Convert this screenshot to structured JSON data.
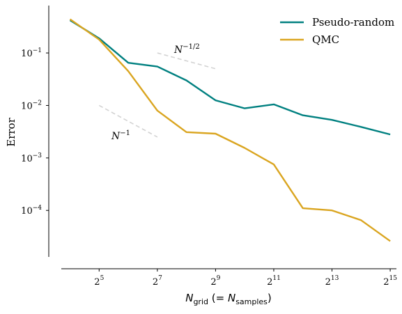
{
  "chart_data": {
    "type": "line",
    "x_scale": "log2",
    "y_scale": "log10",
    "xlabel": {
      "main": "N",
      "sub1": "grid",
      "mid": " (= ",
      "main2": "N",
      "sub2": "samples",
      "end": ")"
    },
    "ylabel": "Error",
    "xlim": [
      13,
      38000
    ],
    "ylim": [
      1.3e-05,
      0.8
    ],
    "x_ticks": [
      {
        "value": 32,
        "base": "2",
        "exp": "5"
      },
      {
        "value": 128,
        "base": "2",
        "exp": "7"
      },
      {
        "value": 512,
        "base": "2",
        "exp": "9"
      },
      {
        "value": 2048,
        "base": "2",
        "exp": "11"
      },
      {
        "value": 8192,
        "base": "2",
        "exp": "13"
      },
      {
        "value": 32768,
        "base": "2",
        "exp": "15"
      }
    ],
    "y_ticks": [
      {
        "value": 0.1,
        "base": "10",
        "exp": "−1"
      },
      {
        "value": 0.01,
        "base": "10",
        "exp": "−2"
      },
      {
        "value": 0.001,
        "base": "10",
        "exp": "−3"
      },
      {
        "value": 0.0001,
        "base": "10",
        "exp": "−4"
      }
    ],
    "x": [
      16,
      32,
      64,
      128,
      256,
      512,
      1024,
      2048,
      4096,
      8192,
      16384,
      32768
    ],
    "series": [
      {
        "name": "Pseudo-random",
        "color": "#008080",
        "values": [
          0.42,
          0.19,
          0.065,
          0.055,
          0.03,
          0.0125,
          0.0088,
          0.0105,
          0.0065,
          0.0053,
          0.0039,
          0.0028
        ]
      },
      {
        "name": "QMC",
        "color": "#DAA520",
        "values": [
          0.44,
          0.18,
          0.045,
          0.008,
          0.0031,
          0.0029,
          0.00155,
          0.00075,
          0.00011,
          0.0001,
          6.5e-05,
          2.6e-05
        ]
      }
    ],
    "reference_lines": [
      {
        "label_base": "N",
        "label_exp": "−1/2",
        "x": [
          128,
          512
        ],
        "y": [
          0.1,
          0.05
        ],
        "color": "#d3d3d3",
        "style": "dashed"
      },
      {
        "label_base": "N",
        "label_exp": "−1",
        "x": [
          32,
          128
        ],
        "y": [
          0.01,
          0.0025
        ],
        "color": "#d3d3d3",
        "style": "dashed"
      }
    ],
    "legend_position": "top-right",
    "grid": false
  }
}
